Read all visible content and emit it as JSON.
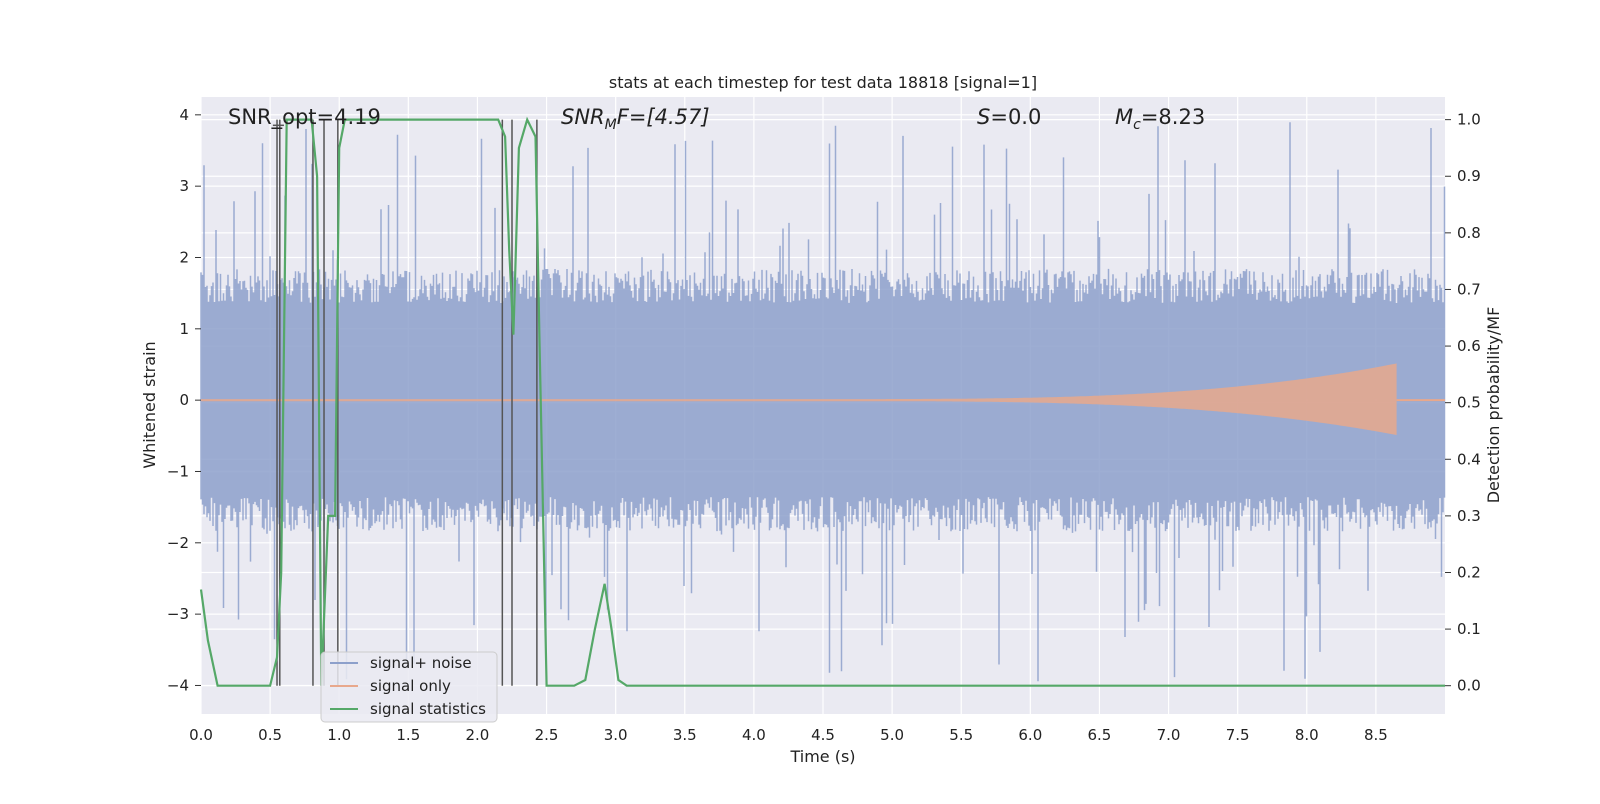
{
  "chart_data": {
    "type": "line",
    "title": "stats at each timestep for test data 18818 [signal=1]",
    "xlabel": "Time (s)",
    "ylabel_left": "Whitened strain",
    "ylabel_right": "Detection probability/MF",
    "xlim": [
      0,
      9.0
    ],
    "ylim_left": [
      -4.4,
      4.25
    ],
    "ylim_right": [
      -0.05,
      1.04
    ],
    "x_ticks": [
      "0.0",
      "0.5",
      "1.0",
      "1.5",
      "2.0",
      "2.5",
      "3.0",
      "3.5",
      "4.0",
      "4.5",
      "5.0",
      "5.5",
      "6.0",
      "6.5",
      "7.0",
      "7.5",
      "8.0",
      "8.5"
    ],
    "y_left_ticks": [
      "4",
      "3",
      "2",
      "1",
      "0",
      "−1",
      "−2",
      "−3",
      "−4"
    ],
    "y_right_ticks": [
      "1.0",
      "0.9",
      "0.8",
      "0.7",
      "0.6",
      "0.5",
      "0.4",
      "0.3",
      "0.2",
      "0.1",
      "0.0"
    ],
    "grid": true,
    "legend_position": "lower-left",
    "annotations": {
      "snr_opt": "SNR_opt=4.19",
      "snr_mf_sym": "SNR",
      "snr_mf_sub": "M",
      "snr_mf_rest": "F=[4.57]",
      "s_sym": "S",
      "s_rest": "=0.0",
      "mc_sym": "M",
      "mc_sub": "c",
      "mc_rest": "=8.23"
    },
    "series": [
      {
        "name": "signal+ noise",
        "color": "#8da0cb",
        "axis": "left",
        "description_envelope": {
          "typical_range": [
            -1.6,
            1.6
          ],
          "peak_max": 3.9,
          "peak_min": -4.0
        }
      },
      {
        "name": "signal only",
        "color": "#e8a88c",
        "axis": "left",
        "chirp": {
          "start": 4.5,
          "end": 8.65,
          "peak_amplitude": 0.5
        }
      },
      {
        "name": "signal statistics",
        "color": "#55a868",
        "axis": "right",
        "x": [
          0.0,
          0.05,
          0.12,
          0.5,
          0.55,
          0.58,
          0.62,
          0.66,
          0.8,
          0.84,
          0.87,
          0.92,
          0.97,
          1.0,
          1.04,
          1.08,
          2.15,
          2.2,
          2.23,
          2.26,
          2.3,
          2.36,
          2.42,
          2.45,
          2.5,
          2.55,
          2.7,
          2.78,
          2.85,
          2.92,
          2.97,
          3.02,
          3.08,
          9.0
        ],
        "values": [
          0.17,
          0.08,
          0.0,
          0.0,
          0.05,
          0.2,
          1.0,
          1.0,
          1.0,
          0.9,
          0.0,
          0.3,
          0.3,
          0.95,
          1.0,
          1.0,
          1.0,
          0.97,
          0.77,
          0.62,
          0.95,
          1.0,
          0.97,
          0.6,
          0.0,
          0.0,
          0.0,
          0.01,
          0.1,
          0.18,
          0.1,
          0.01,
          0.0,
          0.0
        ]
      }
    ],
    "vertical_markers": [
      0.55,
      0.57,
      0.81,
      0.89,
      0.99,
      2.18,
      2.25,
      2.43
    ]
  }
}
